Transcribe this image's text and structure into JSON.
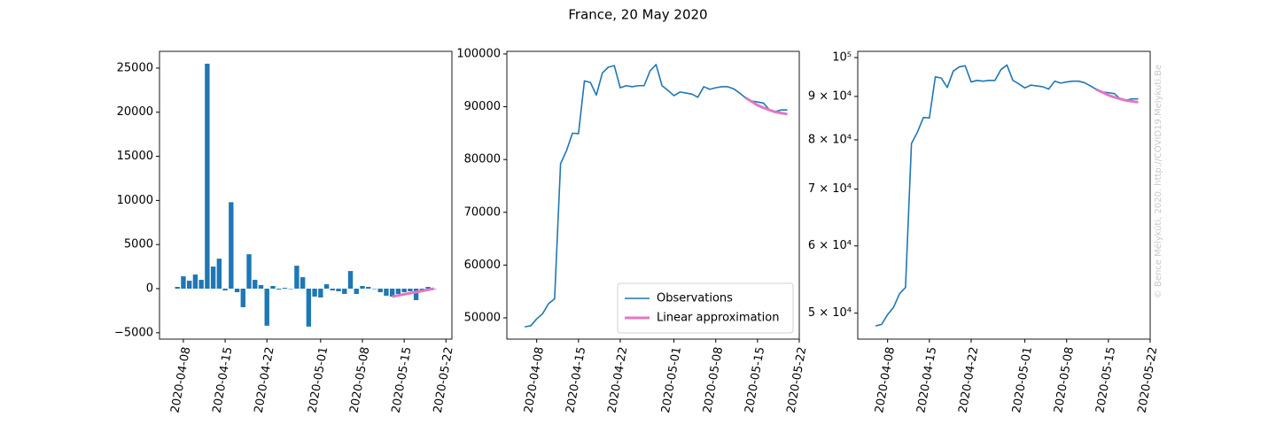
{
  "title": "France, 20 May 2020",
  "annotation": "© Bence Mélykúti, 2020. http://COVID19.Melykuti.Be",
  "chart_data": [
    {
      "type": "bar",
      "x": [
        "2020-04-07",
        "2020-04-08",
        "2020-04-09",
        "2020-04-10",
        "2020-04-11",
        "2020-04-12",
        "2020-04-13",
        "2020-04-14",
        "2020-04-15",
        "2020-04-16",
        "2020-04-17",
        "2020-04-18",
        "2020-04-19",
        "2020-04-20",
        "2020-04-21",
        "2020-04-22",
        "2020-04-23",
        "2020-04-24",
        "2020-04-25",
        "2020-04-26",
        "2020-04-27",
        "2020-04-28",
        "2020-04-29",
        "2020-04-30",
        "2020-05-01",
        "2020-05-02",
        "2020-05-03",
        "2020-05-04",
        "2020-05-05",
        "2020-05-06",
        "2020-05-07",
        "2020-05-08",
        "2020-05-09",
        "2020-05-10",
        "2020-05-11",
        "2020-05-12",
        "2020-05-13",
        "2020-05-14",
        "2020-05-15",
        "2020-05-16",
        "2020-05-17",
        "2020-05-18",
        "2020-05-19",
        "2020-05-20"
      ],
      "values": [
        200,
        1400,
        900,
        1600,
        1000,
        25500,
        2500,
        3400,
        -200,
        9800,
        -400,
        -2100,
        3900,
        1000,
        400,
        -4200,
        300,
        -100,
        100,
        0,
        2600,
        1300,
        -4300,
        -900,
        -1000,
        500,
        -200,
        -300,
        -600,
        2000,
        -600,
        300,
        200,
        0,
        -400,
        -800,
        -900,
        -600,
        -400,
        -300,
        -1300,
        -300,
        200,
        0
      ],
      "color": "#1f77b4",
      "fit": {
        "x": [
          "2020-05-13",
          "2020-05-14",
          "2020-05-15",
          "2020-05-16",
          "2020-05-17",
          "2020-05-18",
          "2020-05-19",
          "2020-05-20"
        ],
        "values": [
          -900,
          -770,
          -640,
          -510,
          -390,
          -260,
          -130,
          0
        ],
        "color": "#e377c2"
      },
      "xlim": [
        "2020-04-04",
        "2020-05-23"
      ],
      "xticks": [
        "2020-04-08",
        "2020-04-15",
        "2020-04-22",
        "2020-05-01",
        "2020-05-08",
        "2020-05-15",
        "2020-05-22"
      ],
      "ylim": [
        -5720,
        26900
      ],
      "yticks": [
        {
          "value": -5000,
          "label": "−5000"
        },
        0,
        5000,
        10000,
        15000,
        20000,
        25000
      ]
    },
    {
      "type": "line",
      "series": [
        {
          "name": "Observations",
          "color": "#1f77b4",
          "x": [
            "2020-04-06",
            "2020-04-07",
            "2020-04-08",
            "2020-04-09",
            "2020-04-10",
            "2020-04-11",
            "2020-04-12",
            "2020-04-13",
            "2020-04-14",
            "2020-04-15",
            "2020-04-16",
            "2020-04-17",
            "2020-04-18",
            "2020-04-19",
            "2020-04-20",
            "2020-04-21",
            "2020-04-22",
            "2020-04-23",
            "2020-04-24",
            "2020-04-25",
            "2020-04-26",
            "2020-04-27",
            "2020-04-28",
            "2020-04-29",
            "2020-04-30",
            "2020-05-01",
            "2020-05-02",
            "2020-05-03",
            "2020-05-04",
            "2020-05-05",
            "2020-05-06",
            "2020-05-07",
            "2020-05-08",
            "2020-05-09",
            "2020-05-10",
            "2020-05-11",
            "2020-05-12",
            "2020-05-13",
            "2020-05-14",
            "2020-05-15",
            "2020-05-16",
            "2020-05-17",
            "2020-05-18",
            "2020-05-19",
            "2020-05-20"
          ],
          "values": [
            48300,
            48500,
            49800,
            50800,
            52700,
            53600,
            79200,
            81700,
            85000,
            84900,
            94900,
            94600,
            92200,
            96400,
            97500,
            97800,
            93600,
            94000,
            93800,
            94000,
            94000,
            96800,
            98000,
            94000,
            93100,
            92100,
            92800,
            92600,
            92400,
            91800,
            93800,
            93300,
            93600,
            93800,
            93800,
            93400,
            92600,
            91700,
            91100,
            90900,
            90700,
            89400,
            89100,
            89400,
            89400
          ]
        },
        {
          "name": "Linear approximation",
          "color": "#e377c2",
          "x": [
            "2020-05-13",
            "2020-05-14",
            "2020-05-15",
            "2020-05-16",
            "2020-05-17",
            "2020-05-18",
            "2020-05-19",
            "2020-05-20"
          ],
          "values": [
            91700,
            91000,
            90300,
            89800,
            89400,
            89000,
            88800,
            88600
          ]
        }
      ],
      "legend": "lower right",
      "xlim": [
        "2020-04-03",
        "2020-05-22"
      ],
      "xticks": [
        "2020-04-08",
        "2020-04-15",
        "2020-04-22",
        "2020-05-01",
        "2020-05-08",
        "2020-05-15",
        "2020-05-22"
      ],
      "ylim": [
        45970,
        100500
      ],
      "yticks": [
        50000,
        60000,
        70000,
        80000,
        90000,
        100000
      ]
    },
    {
      "type": "line",
      "log_y": true,
      "series": [
        {
          "color": "#1f77b4",
          "x": [
            "2020-04-06",
            "2020-04-07",
            "2020-04-08",
            "2020-04-09",
            "2020-04-10",
            "2020-04-11",
            "2020-04-12",
            "2020-04-13",
            "2020-04-14",
            "2020-04-15",
            "2020-04-16",
            "2020-04-17",
            "2020-04-18",
            "2020-04-19",
            "2020-04-20",
            "2020-04-21",
            "2020-04-22",
            "2020-04-23",
            "2020-04-24",
            "2020-04-25",
            "2020-04-26",
            "2020-04-27",
            "2020-04-28",
            "2020-04-29",
            "2020-04-30",
            "2020-05-01",
            "2020-05-02",
            "2020-05-03",
            "2020-05-04",
            "2020-05-05",
            "2020-05-06",
            "2020-05-07",
            "2020-05-08",
            "2020-05-09",
            "2020-05-10",
            "2020-05-11",
            "2020-05-12",
            "2020-05-13",
            "2020-05-14",
            "2020-05-15",
            "2020-05-16",
            "2020-05-17",
            "2020-05-18",
            "2020-05-19",
            "2020-05-20"
          ],
          "values": [
            48300,
            48500,
            49800,
            50800,
            52700,
            53600,
            79200,
            81700,
            85000,
            84900,
            94900,
            94600,
            92200,
            96400,
            97500,
            97800,
            93600,
            94000,
            93800,
            94000,
            94000,
            96800,
            98000,
            94000,
            93100,
            92100,
            92800,
            92600,
            92400,
            91800,
            93800,
            93300,
            93600,
            93800,
            93800,
            93400,
            92600,
            91700,
            91100,
            90900,
            90700,
            89400,
            89100,
            89400,
            89400
          ]
        },
        {
          "color": "#e377c2",
          "x": [
            "2020-05-13",
            "2020-05-14",
            "2020-05-15",
            "2020-05-16",
            "2020-05-17",
            "2020-05-18",
            "2020-05-19",
            "2020-05-20"
          ],
          "values": [
            91700,
            91000,
            90300,
            89800,
            89400,
            89000,
            88800,
            88600
          ]
        }
      ],
      "xlim": [
        "2020-04-03",
        "2020-05-22"
      ],
      "xticks": [
        "2020-04-08",
        "2020-04-15",
        "2020-04-22",
        "2020-05-01",
        "2020-05-08",
        "2020-05-15",
        "2020-05-22"
      ],
      "ylim": [
        46600,
        101700
      ],
      "yticks": [
        {
          "value": 50000,
          "label": "5 × 10⁴"
        },
        {
          "value": 60000,
          "label": "6 × 10⁴"
        },
        {
          "value": 70000,
          "label": "7 × 10⁴"
        },
        {
          "value": 80000,
          "label": "8 × 10⁴"
        },
        {
          "value": 90000,
          "label": "9 × 10⁴"
        },
        {
          "value": 100000,
          "label": "10⁵"
        }
      ]
    }
  ]
}
